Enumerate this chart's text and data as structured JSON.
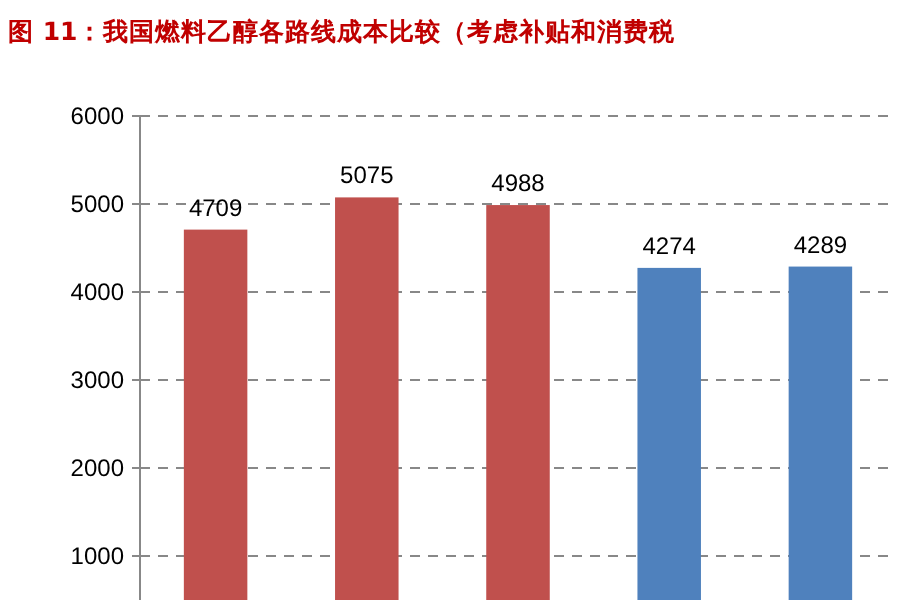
{
  "chart_data": {
    "type": "bar",
    "title": "图 11：我国燃料乙醇各路线成本比较（考虑补贴和消费税",
    "categories": [
      null,
      null,
      null,
      null,
      null
    ],
    "values": [
      4709,
      5075,
      4988,
      4274,
      4289
    ],
    "colors": [
      "#c0504d",
      "#c0504d",
      "#c0504d",
      "#4f81bd",
      "#4f81bd"
    ],
    "ylim": [
      500,
      6000
    ],
    "yticks": [
      1000,
      2000,
      3000,
      4000,
      5000,
      6000
    ],
    "grid": "y",
    "data_labels": true
  }
}
